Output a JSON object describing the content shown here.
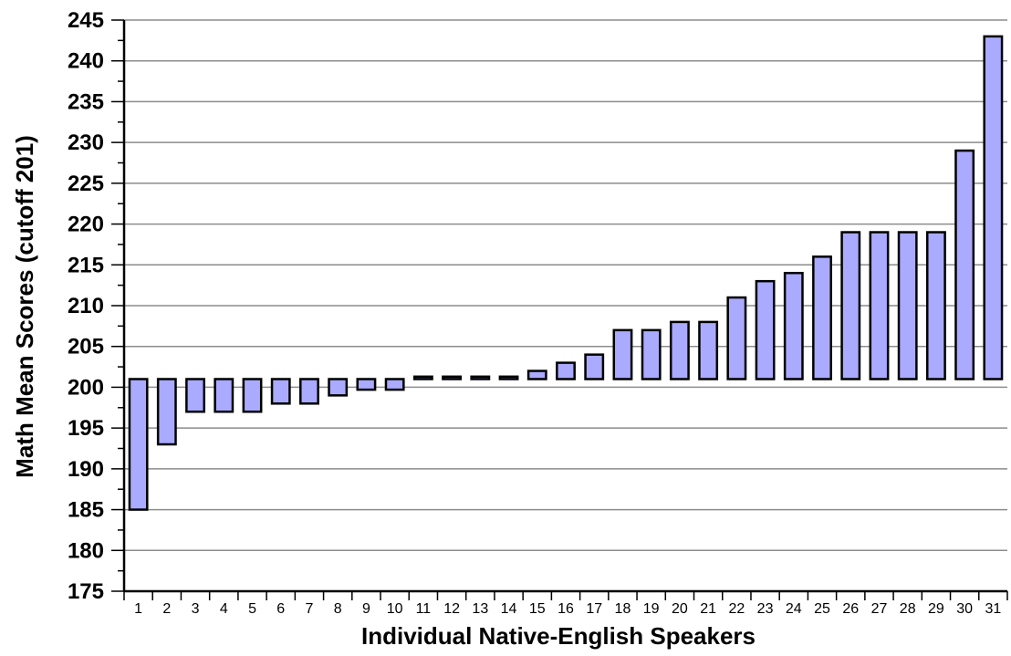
{
  "chart_data": {
    "type": "bar",
    "title": "",
    "xlabel": "Individual Native-English Speakers",
    "ylabel": "Math Mean Scores (cutoff 201)",
    "baseline": 201,
    "ylim": [
      175,
      245
    ],
    "ytick_step": 5,
    "grid": true,
    "categories": [
      "1",
      "2",
      "3",
      "4",
      "5",
      "6",
      "7",
      "8",
      "9",
      "10",
      "11",
      "12",
      "13",
      "14",
      "15",
      "16",
      "17",
      "18",
      "19",
      "20",
      "21",
      "22",
      "23",
      "24",
      "25",
      "26",
      "27",
      "28",
      "29",
      "30",
      "31"
    ],
    "values": [
      185,
      193,
      197,
      197,
      197,
      198,
      198,
      199,
      199.7,
      199.7,
      201.3,
      201.3,
      201.3,
      201.3,
      202,
      203,
      204,
      207,
      207,
      208,
      208,
      211,
      213,
      214,
      216,
      219,
      219,
      219,
      219,
      229,
      243
    ],
    "colors": {
      "bar_fill": "#aaaaff",
      "bar_stroke": "#000000",
      "grid": "#8c8c8c"
    }
  }
}
